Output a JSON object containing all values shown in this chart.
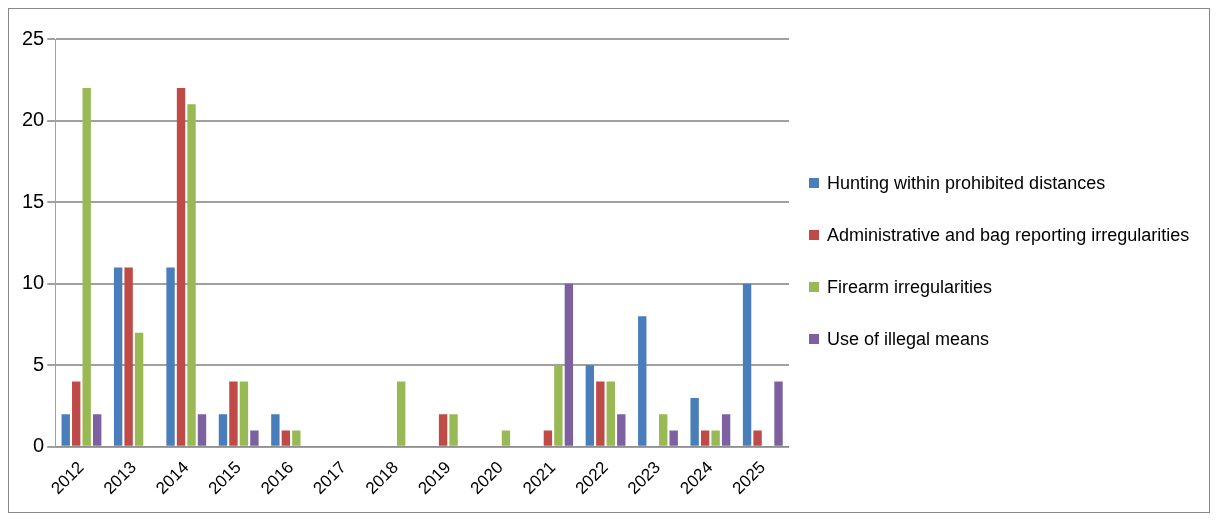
{
  "chart_data": {
    "type": "bar",
    "categories": [
      "2012",
      "2013",
      "2014",
      "2015",
      "2016",
      "2017",
      "2018",
      "2019",
      "2020",
      "2021",
      "2022",
      "2023",
      "2024",
      "2025"
    ],
    "series": [
      {
        "name": "Hunting within prohibited distances",
        "color": "#4a7ebb",
        "values": [
          2,
          11,
          11,
          2,
          2,
          0,
          0,
          0,
          0,
          0,
          5,
          8,
          3,
          10
        ]
      },
      {
        "name": "Administrative and bag reporting irregularities",
        "color": "#be4b48",
        "values": [
          4,
          11,
          22,
          4,
          1,
          0,
          0,
          2,
          0,
          1,
          4,
          0,
          1,
          1
        ]
      },
      {
        "name": "Firearm irregularities",
        "color": "#98b954",
        "values": [
          22,
          7,
          21,
          4,
          1,
          0,
          4,
          2,
          1,
          5,
          4,
          2,
          1,
          0
        ]
      },
      {
        "name": "Use of illegal means",
        "color": "#7d60a0",
        "values": [
          2,
          0,
          2,
          1,
          0,
          0,
          0,
          0,
          0,
          10,
          2,
          1,
          2,
          4
        ]
      }
    ],
    "ylim": [
      0,
      25
    ],
    "yticks": [
      0,
      5,
      10,
      15,
      20,
      25
    ],
    "grid": "y",
    "legend": "right"
  }
}
